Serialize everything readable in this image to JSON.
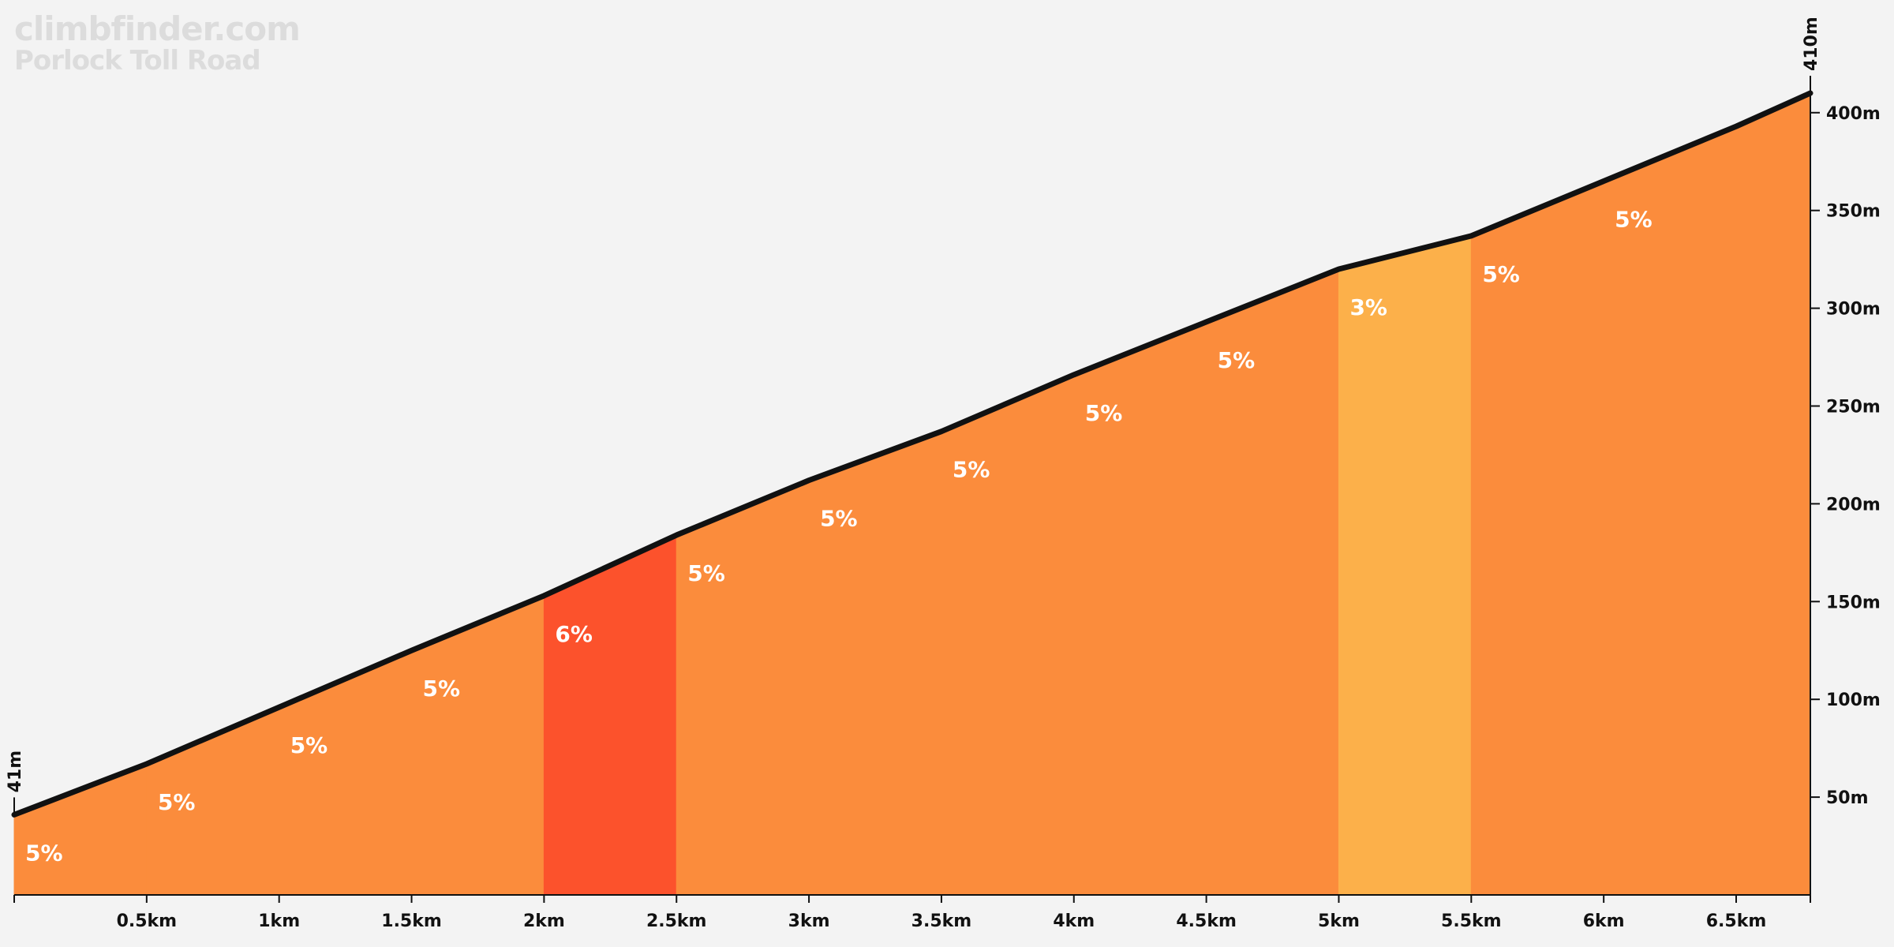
{
  "branding": {
    "site": "climbfinder.com",
    "climb_name": "Porlock Toll Road"
  },
  "chart_data": {
    "type": "area",
    "title": "Porlock Toll Road",
    "xlabel": "",
    "ylabel": "",
    "xlim": [
      0,
      6.78
    ],
    "ylim": [
      0,
      410
    ],
    "x_unit": "km",
    "y_unit": "m",
    "start_elevation_label": "41m",
    "end_elevation_label": "410m",
    "x_ticks": [
      {
        "value": 0.5,
        "label": "0.5km"
      },
      {
        "value": 1.0,
        "label": "1km"
      },
      {
        "value": 1.5,
        "label": "1.5km"
      },
      {
        "value": 2.0,
        "label": "2km"
      },
      {
        "value": 2.5,
        "label": "2.5km"
      },
      {
        "value": 3.0,
        "label": "3km"
      },
      {
        "value": 3.5,
        "label": "3.5km"
      },
      {
        "value": 4.0,
        "label": "4km"
      },
      {
        "value": 4.5,
        "label": "4.5km"
      },
      {
        "value": 5.0,
        "label": "5km"
      },
      {
        "value": 5.5,
        "label": "5.5km"
      },
      {
        "value": 6.0,
        "label": "6km"
      },
      {
        "value": 6.5,
        "label": "6.5km"
      }
    ],
    "y_ticks": [
      {
        "value": 50,
        "label": "50m"
      },
      {
        "value": 100,
        "label": "100m"
      },
      {
        "value": 150,
        "label": "150m"
      },
      {
        "value": 200,
        "label": "200m"
      },
      {
        "value": 250,
        "label": "250m"
      },
      {
        "value": 300,
        "label": "300m"
      },
      {
        "value": 350,
        "label": "350m"
      },
      {
        "value": 400,
        "label": "400m"
      }
    ],
    "profile": [
      {
        "km": 0.0,
        "elev": 41
      },
      {
        "km": 0.5,
        "elev": 67
      },
      {
        "km": 1.0,
        "elev": 96
      },
      {
        "km": 1.5,
        "elev": 125
      },
      {
        "km": 2.0,
        "elev": 153
      },
      {
        "km": 2.5,
        "elev": 184
      },
      {
        "km": 3.0,
        "elev": 212
      },
      {
        "km": 3.5,
        "elev": 237
      },
      {
        "km": 4.0,
        "elev": 266
      },
      {
        "km": 4.5,
        "elev": 293
      },
      {
        "km": 5.0,
        "elev": 320
      },
      {
        "km": 5.5,
        "elev": 337
      },
      {
        "km": 6.0,
        "elev": 365
      },
      {
        "km": 6.5,
        "elev": 393
      },
      {
        "km": 6.78,
        "elev": 410
      }
    ],
    "segments": [
      {
        "start_km": 0.0,
        "end_km": 0.5,
        "grade": 5,
        "label": "5%",
        "color": "#fb8c3c"
      },
      {
        "start_km": 0.5,
        "end_km": 1.0,
        "grade": 5,
        "label": "5%",
        "color": "#fb8c3c"
      },
      {
        "start_km": 1.0,
        "end_km": 1.5,
        "grade": 5,
        "label": "5%",
        "color": "#fb8c3c"
      },
      {
        "start_km": 1.5,
        "end_km": 2.0,
        "grade": 5,
        "label": "5%",
        "color": "#fb8c3c"
      },
      {
        "start_km": 2.0,
        "end_km": 2.5,
        "grade": 6,
        "label": "6%",
        "color": "#fc522c"
      },
      {
        "start_km": 2.5,
        "end_km": 3.0,
        "grade": 5,
        "label": "5%",
        "color": "#fb8c3c"
      },
      {
        "start_km": 3.0,
        "end_km": 3.5,
        "grade": 5,
        "label": "5%",
        "color": "#fb8c3c"
      },
      {
        "start_km": 3.5,
        "end_km": 4.0,
        "grade": 5,
        "label": "5%",
        "color": "#fb8c3c"
      },
      {
        "start_km": 4.0,
        "end_km": 4.5,
        "grade": 5,
        "label": "5%",
        "color": "#fb8c3c"
      },
      {
        "start_km": 4.5,
        "end_km": 5.0,
        "grade": 5,
        "label": "5%",
        "color": "#fb8c3c"
      },
      {
        "start_km": 5.0,
        "end_km": 5.5,
        "grade": 3,
        "label": "3%",
        "color": "#fcb04a"
      },
      {
        "start_km": 5.5,
        "end_km": 6.0,
        "grade": 5,
        "label": "5%",
        "color": "#fb8c3c"
      },
      {
        "start_km": 6.0,
        "end_km": 6.78,
        "grade": 5,
        "label": "5%",
        "color": "#fb8c3c"
      }
    ],
    "colors": {
      "background": "#f3f3f3",
      "profile_line": "#111111",
      "axis": "#111111",
      "label_text": "#ffffff"
    },
    "grid": false,
    "legend": "none"
  }
}
